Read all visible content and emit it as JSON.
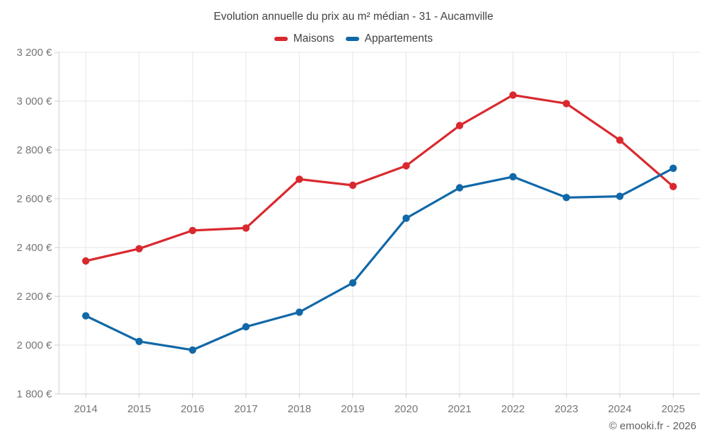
{
  "header": {
    "title": "Evolution annuelle du prix au m² médian - 31 - Aucamville"
  },
  "footer": {
    "attribution": "© emooki.fr - 2026"
  },
  "colors": {
    "maisons": "#d9292f",
    "appartements": "#1168a8",
    "grid": "#e6e6e6",
    "axis": "#cfcfcf",
    "axis_label": "#757575",
    "title_text": "#424242"
  },
  "chart_data": {
    "type": "line",
    "title": "Evolution annuelle du prix au m² médian - 31 - Aucamville",
    "xlabel": "",
    "ylabel": "",
    "x": [
      "2014",
      "2015",
      "2016",
      "2017",
      "2018",
      "2019",
      "2020",
      "2021",
      "2022",
      "2023",
      "2024",
      "2025"
    ],
    "series": [
      {
        "name": "Maisons",
        "color": "#d9292f",
        "values": [
          2345,
          2395,
          2470,
          2480,
          2680,
          2655,
          2735,
          2900,
          3025,
          2990,
          2840,
          2650
        ]
      },
      {
        "name": "Appartements",
        "color": "#1168a8",
        "values": [
          2120,
          2015,
          1980,
          2075,
          2135,
          2255,
          2520,
          2645,
          2690,
          2605,
          2610,
          2725
        ]
      }
    ],
    "ylim": [
      1800,
      3200
    ],
    "y_tick_step": 200,
    "y_tick_labels": [
      "1 800 €",
      "2 000 €",
      "2 200 €",
      "2 400 €",
      "2 600 €",
      "2 800 €",
      "3 000 €",
      "3 200 €"
    ],
    "grid": true,
    "legend_position": "top",
    "marker": "circle"
  }
}
